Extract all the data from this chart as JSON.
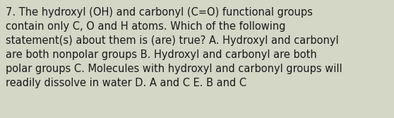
{
  "text": "7. The hydroxyl (OH) and carbonyl (C=O) functional groups\ncontain only C, O and H atoms. Which of the following\nstatement(s) about them is (are) true? A. Hydroxyl and carbonyl\nare both nonpolar groups B. Hydroxyl and carbonyl are both\npolar groups C. Molecules with hydroxyl and carbonyl groups will\nreadily dissolve in water D. A and C E. B and C",
  "background_color": "#d4d6c6",
  "text_color": "#1a1a1a",
  "font_size": 10.5,
  "fig_width": 5.58,
  "fig_height": 1.67,
  "dpi": 100
}
